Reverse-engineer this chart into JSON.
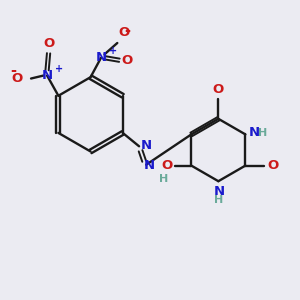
{
  "bg_color": "#ebebf2",
  "bond_color": "#1a1a1a",
  "n_color": "#1a1acc",
  "o_color": "#cc1a1a",
  "h_color": "#6aaa9a",
  "bond_lw": 1.7,
  "font_size": 9.5,
  "font_size_small": 8.0,
  "figsize": [
    3.0,
    3.0
  ],
  "dpi": 100,
  "xlim": [
    0,
    10
  ],
  "ylim": [
    0,
    10
  ]
}
